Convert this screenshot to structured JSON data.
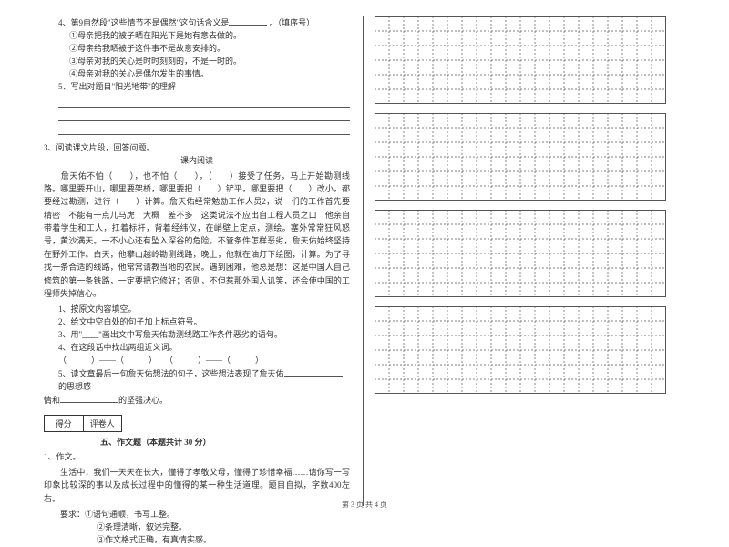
{
  "left": {
    "q4": {
      "stem": "4、第9自然段\"这些情节不是偶然\"这句话含义是",
      "tail": " 。（填序号）",
      "opts": [
        "①母亲把我的被子晒在阳光下是她有意去做的。",
        "②母亲给我晒被子这件事不是故意安排的。",
        "③母亲对我的关心是时时刻刻的，不是一时的。",
        "④母亲对我的关心是偶尔发生的事情。"
      ]
    },
    "q5": "5、写出对题目\"阳光地带\"的理解",
    "sec3": "3、阅读课文片段，回答问题。",
    "sec3_title": "课内阅读",
    "passage": "　　詹天佑不怕（　　），也不怕（　　），（　　）接受了任务，马上开始勘测线路。哪里要开山，哪里要架桥，哪里要把（　　）铲平，哪里要把（　　）改小，都要经过勘测，进行（　　）计算。詹天佑经常勉励工作人员2，说　们的工作首先要精密　不能有一点儿马虎　大概　差不多　这类说法不应出自工程人员之口　他亲自带着学生和工人，扛着标杆，背着经纬仪，在峭壁上定点，测绘。塞外常常狂风怒号，黄沙满天。一不小心还有坠入深谷的危险。不管条件怎样恶劣，詹天佑始终坚持在野外工作。白天，他攀山越岭勘测线路，晚上，他就在油灯下绘图，计算。为了寻找一条合适的线路，他常常请教当地的农民。遇到困难，他总是想：这是中国人自己修筑的第一条铁路，一定要把它修好；否则，不但惹那外国人讥笑，还会使中国的工程师失掉信心。",
    "sub": [
      "1、按原文内容填空。",
      "2、给文中空白处的句子加上标点符号。",
      "3、用\"﹏﹏\"画出文中写詹天佑勘测线路工作条件恶劣的语句。",
      "4、在这段话中找出两组近义词。"
    ],
    "pair": "（　　　）——（　　　）　　（　　　）——（　　　）",
    "q5b_a": "5、读文章最后一句詹天佑想法的句子，这些想法表现了詹天佑",
    "q5b_b": "的思想感",
    "q5b_c": "情和",
    "q5b_d": "的坚强决心。",
    "score": {
      "a": "得分",
      "b": "评卷人"
    },
    "section5": "五、作文题（本题共计 30 分）",
    "essay": {
      "n": "1、作文。",
      "p1": "　　生活中，我们一天天在长大，懂得了孝敬父母，懂得了珍惜幸福……请你写一写印象比较深的事以及成长过程中的懂得的某一种生活道理。题目自拟，字数400左右。",
      "req": "　　要求：①语句通顺，书写工整。",
      "r2": "②条理清晰，叙述完整。",
      "r3": "③作文格式正确，有真情实感。"
    }
  },
  "grid": {
    "cols": 20,
    "rows": 6,
    "cell": 16,
    "blocks": 4,
    "border": "#555555",
    "dash": "2,2"
  },
  "footer": "第 3 页  共 4 页"
}
